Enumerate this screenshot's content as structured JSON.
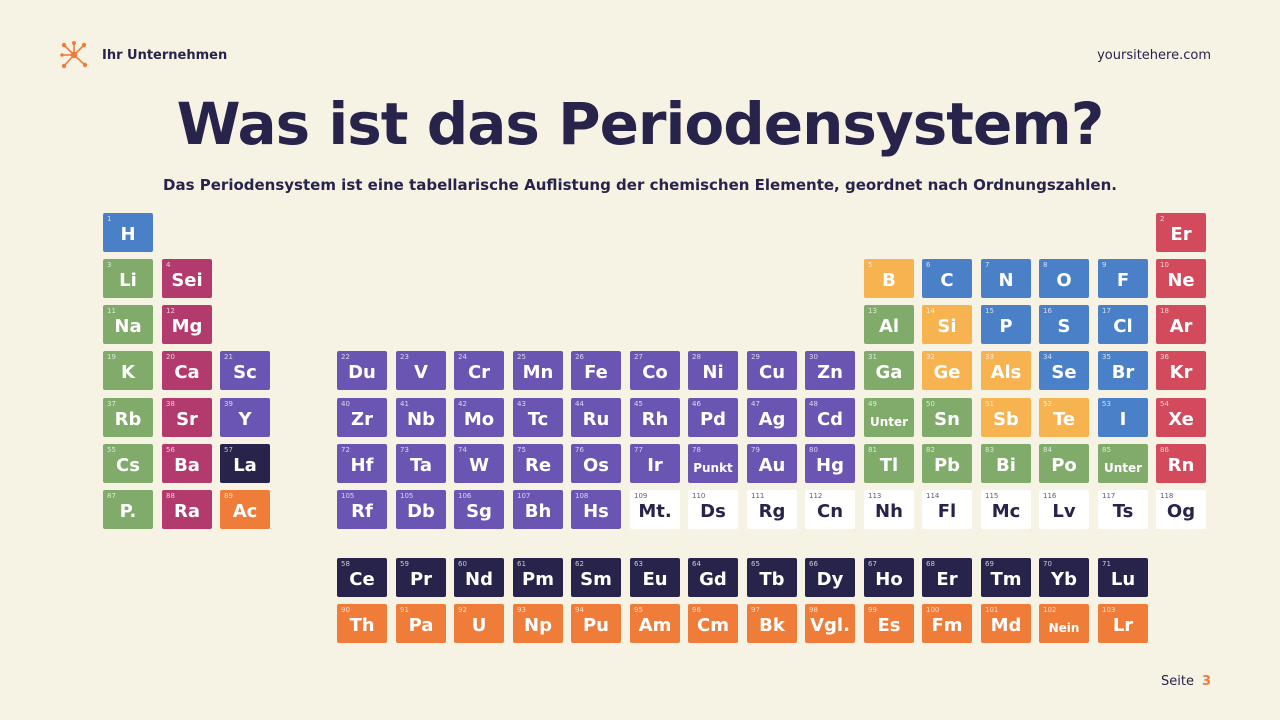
{
  "header": {
    "brand": "Ihr Unternehmen",
    "site": "yoursitehere.com",
    "logo_icon": "molecule-icon"
  },
  "title": "Was ist das Periodensystem?",
  "subtitle": "Das Periodensystem ist eine tabellarische Auflistung der chemischen Elemente, geordnet nach Ordnungszahlen.",
  "footer": {
    "label": "Seite",
    "page": "3"
  },
  "colors": {
    "blue": "#4a80c8",
    "green": "#80ab6a",
    "magenta": "#b23a6c",
    "red": "#d24a5c",
    "purple": "#6a56b2",
    "navy": "#27234a",
    "orange": "#f07c3a",
    "yellow": "#f7b350",
    "white": "#ffffff",
    "background": "#f7f3e4"
  },
  "elements": [
    {
      "n": "1",
      "s": "H",
      "c": "blue",
      "row": 0,
      "col": 0
    },
    {
      "n": "2",
      "s": "Er",
      "c": "red",
      "row": 0,
      "col": 18
    },
    {
      "n": "3",
      "s": "Li",
      "c": "green",
      "row": 1,
      "col": 0
    },
    {
      "n": "4",
      "s": "Sei",
      "c": "magenta",
      "row": 1,
      "col": 1
    },
    {
      "n": "5",
      "s": "B",
      "c": "yellow",
      "row": 1,
      "col": 13
    },
    {
      "n": "6",
      "s": "C",
      "c": "blue",
      "row": 1,
      "col": 14
    },
    {
      "n": "7",
      "s": "N",
      "c": "blue",
      "row": 1,
      "col": 15
    },
    {
      "n": "8",
      "s": "O",
      "c": "blue",
      "row": 1,
      "col": 16
    },
    {
      "n": "9",
      "s": "F",
      "c": "blue",
      "row": 1,
      "col": 17
    },
    {
      "n": "10",
      "s": "Ne",
      "c": "red",
      "row": 1,
      "col": 18
    },
    {
      "n": "11",
      "s": "Na",
      "c": "green",
      "row": 2,
      "col": 0
    },
    {
      "n": "12",
      "s": "Mg",
      "c": "magenta",
      "row": 2,
      "col": 1
    },
    {
      "n": "13",
      "s": "Al",
      "c": "green",
      "row": 2,
      "col": 13
    },
    {
      "n": "14",
      "s": "Si",
      "c": "yellow",
      "row": 2,
      "col": 14
    },
    {
      "n": "15",
      "s": "P",
      "c": "blue",
      "row": 2,
      "col": 15
    },
    {
      "n": "16",
      "s": "S",
      "c": "blue",
      "row": 2,
      "col": 16
    },
    {
      "n": "17",
      "s": "Cl",
      "c": "blue",
      "row": 2,
      "col": 17
    },
    {
      "n": "18",
      "s": "Ar",
      "c": "red",
      "row": 2,
      "col": 18
    },
    {
      "n": "19",
      "s": "K",
      "c": "green",
      "row": 3,
      "col": 0
    },
    {
      "n": "20",
      "s": "Ca",
      "c": "magenta",
      "row": 3,
      "col": 1
    },
    {
      "n": "21",
      "s": "Sc",
      "c": "purple",
      "row": 3,
      "col": 2
    },
    {
      "n": "22",
      "s": "Du",
      "c": "purple",
      "row": 3,
      "col": 4
    },
    {
      "n": "23",
      "s": "V",
      "c": "purple",
      "row": 3,
      "col": 5
    },
    {
      "n": "24",
      "s": "Cr",
      "c": "purple",
      "row": 3,
      "col": 6
    },
    {
      "n": "25",
      "s": "Mn",
      "c": "purple",
      "row": 3,
      "col": 7
    },
    {
      "n": "26",
      "s": "Fe",
      "c": "purple",
      "row": 3,
      "col": 8
    },
    {
      "n": "27",
      "s": "Co",
      "c": "purple",
      "row": 3,
      "col": 9
    },
    {
      "n": "28",
      "s": "Ni",
      "c": "purple",
      "row": 3,
      "col": 10
    },
    {
      "n": "29",
      "s": "Cu",
      "c": "purple",
      "row": 3,
      "col": 11
    },
    {
      "n": "30",
      "s": "Zn",
      "c": "purple",
      "row": 3,
      "col": 12
    },
    {
      "n": "31",
      "s": "Ga",
      "c": "green",
      "row": 3,
      "col": 13
    },
    {
      "n": "32",
      "s": "Ge",
      "c": "yellow",
      "row": 3,
      "col": 14
    },
    {
      "n": "33",
      "s": "Als",
      "c": "yellow",
      "row": 3,
      "col": 15
    },
    {
      "n": "34",
      "s": "Se",
      "c": "blue",
      "row": 3,
      "col": 16
    },
    {
      "n": "35",
      "s": "Br",
      "c": "blue",
      "row": 3,
      "col": 17
    },
    {
      "n": "36",
      "s": "Kr",
      "c": "red",
      "row": 3,
      "col": 18
    },
    {
      "n": "37",
      "s": "Rb",
      "c": "green",
      "row": 4,
      "col": 0
    },
    {
      "n": "38",
      "s": "Sr",
      "c": "magenta",
      "row": 4,
      "col": 1
    },
    {
      "n": "39",
      "s": "Y",
      "c": "purple",
      "row": 4,
      "col": 2
    },
    {
      "n": "40",
      "s": "Zr",
      "c": "purple",
      "row": 4,
      "col": 4
    },
    {
      "n": "41",
      "s": "Nb",
      "c": "purple",
      "row": 4,
      "col": 5
    },
    {
      "n": "42",
      "s": "Mo",
      "c": "purple",
      "row": 4,
      "col": 6
    },
    {
      "n": "43",
      "s": "Tc",
      "c": "purple",
      "row": 4,
      "col": 7
    },
    {
      "n": "44",
      "s": "Ru",
      "c": "purple",
      "row": 4,
      "col": 8
    },
    {
      "n": "45",
      "s": "Rh",
      "c": "purple",
      "row": 4,
      "col": 9
    },
    {
      "n": "46",
      "s": "Pd",
      "c": "purple",
      "row": 4,
      "col": 10
    },
    {
      "n": "47",
      "s": "Ag",
      "c": "purple",
      "row": 4,
      "col": 11
    },
    {
      "n": "48",
      "s": "Cd",
      "c": "purple",
      "row": 4,
      "col": 12
    },
    {
      "n": "49",
      "s": "Unter",
      "c": "green",
      "row": 4,
      "col": 13,
      "small": true
    },
    {
      "n": "50",
      "s": "Sn",
      "c": "green",
      "row": 4,
      "col": 14
    },
    {
      "n": "51",
      "s": "Sb",
      "c": "yellow",
      "row": 4,
      "col": 15
    },
    {
      "n": "52",
      "s": "Te",
      "c": "yellow",
      "row": 4,
      "col": 16
    },
    {
      "n": "53",
      "s": "I",
      "c": "blue",
      "row": 4,
      "col": 17
    },
    {
      "n": "54",
      "s": "Xe",
      "c": "red",
      "row": 4,
      "col": 18
    },
    {
      "n": "55",
      "s": "Cs",
      "c": "green",
      "row": 5,
      "col": 0
    },
    {
      "n": "56",
      "s": "Ba",
      "c": "magenta",
      "row": 5,
      "col": 1
    },
    {
      "n": "57",
      "s": "La",
      "c": "navy",
      "row": 5,
      "col": 2
    },
    {
      "n": "72",
      "s": "Hf",
      "c": "purple",
      "row": 5,
      "col": 4
    },
    {
      "n": "73",
      "s": "Ta",
      "c": "purple",
      "row": 5,
      "col": 5
    },
    {
      "n": "74",
      "s": "W",
      "c": "purple",
      "row": 5,
      "col": 6
    },
    {
      "n": "75",
      "s": "Re",
      "c": "purple",
      "row": 5,
      "col": 7
    },
    {
      "n": "76",
      "s": "Os",
      "c": "purple",
      "row": 5,
      "col": 8
    },
    {
      "n": "77",
      "s": "Ir",
      "c": "purple",
      "row": 5,
      "col": 9
    },
    {
      "n": "78",
      "s": "Punkt",
      "c": "purple",
      "row": 5,
      "col": 10,
      "small": true
    },
    {
      "n": "79",
      "s": "Au",
      "c": "purple",
      "row": 5,
      "col": 11
    },
    {
      "n": "80",
      "s": "Hg",
      "c": "purple",
      "row": 5,
      "col": 12
    },
    {
      "n": "81",
      "s": "Tl",
      "c": "green",
      "row": 5,
      "col": 13
    },
    {
      "n": "82",
      "s": "Pb",
      "c": "green",
      "row": 5,
      "col": 14
    },
    {
      "n": "83",
      "s": "Bi",
      "c": "green",
      "row": 5,
      "col": 15
    },
    {
      "n": "84",
      "s": "Po",
      "c": "green",
      "row": 5,
      "col": 16
    },
    {
      "n": "85",
      "s": "Unter",
      "c": "green",
      "row": 5,
      "col": 17,
      "small": true
    },
    {
      "n": "86",
      "s": "Rn",
      "c": "red",
      "row": 5,
      "col": 18
    },
    {
      "n": "87",
      "s": "P.",
      "c": "green",
      "row": 6,
      "col": 0
    },
    {
      "n": "88",
      "s": "Ra",
      "c": "magenta",
      "row": 6,
      "col": 1
    },
    {
      "n": "89",
      "s": "Ac",
      "c": "orange",
      "row": 6,
      "col": 2
    },
    {
      "n": "105",
      "s": "Rf",
      "c": "purple",
      "row": 6,
      "col": 4
    },
    {
      "n": "105",
      "s": "Db",
      "c": "purple",
      "row": 6,
      "col": 5
    },
    {
      "n": "106",
      "s": "Sg",
      "c": "purple",
      "row": 6,
      "col": 6
    },
    {
      "n": "107",
      "s": "Bh",
      "c": "purple",
      "row": 6,
      "col": 7
    },
    {
      "n": "108",
      "s": "Hs",
      "c": "purple",
      "row": 6,
      "col": 8
    },
    {
      "n": "109",
      "s": "Mt.",
      "c": "white",
      "row": 6,
      "col": 9
    },
    {
      "n": "110",
      "s": "Ds",
      "c": "white",
      "row": 6,
      "col": 10
    },
    {
      "n": "111",
      "s": "Rg",
      "c": "white",
      "row": 6,
      "col": 11
    },
    {
      "n": "112",
      "s": "Cn",
      "c": "white",
      "row": 6,
      "col": 12
    },
    {
      "n": "113",
      "s": "Nh",
      "c": "white",
      "row": 6,
      "col": 13
    },
    {
      "n": "114",
      "s": "Fl",
      "c": "white",
      "row": 6,
      "col": 14
    },
    {
      "n": "115",
      "s": "Mc",
      "c": "white",
      "row": 6,
      "col": 15
    },
    {
      "n": "116",
      "s": "Lv",
      "c": "white",
      "row": 6,
      "col": 16
    },
    {
      "n": "117",
      "s": "Ts",
      "c": "white",
      "row": 6,
      "col": 17
    },
    {
      "n": "118",
      "s": "Og",
      "c": "white",
      "row": 6,
      "col": 18
    },
    {
      "n": "58",
      "s": "Ce",
      "c": "navy",
      "row": 7,
      "col": 4
    },
    {
      "n": "59",
      "s": "Pr",
      "c": "navy",
      "row": 7,
      "col": 5
    },
    {
      "n": "60",
      "s": "Nd",
      "c": "navy",
      "row": 7,
      "col": 6
    },
    {
      "n": "61",
      "s": "Pm",
      "c": "navy",
      "row": 7,
      "col": 7
    },
    {
      "n": "62",
      "s": "Sm",
      "c": "navy",
      "row": 7,
      "col": 8
    },
    {
      "n": "63",
      "s": "Eu",
      "c": "navy",
      "row": 7,
      "col": 9
    },
    {
      "n": "64",
      "s": "Gd",
      "c": "navy",
      "row": 7,
      "col": 10
    },
    {
      "n": "65",
      "s": "Tb",
      "c": "navy",
      "row": 7,
      "col": 11
    },
    {
      "n": "66",
      "s": "Dy",
      "c": "navy",
      "row": 7,
      "col": 12
    },
    {
      "n": "67",
      "s": "Ho",
      "c": "navy",
      "row": 7,
      "col": 13
    },
    {
      "n": "68",
      "s": "Er",
      "c": "navy",
      "row": 7,
      "col": 14
    },
    {
      "n": "69",
      "s": "Tm",
      "c": "navy",
      "row": 7,
      "col": 15
    },
    {
      "n": "70",
      "s": "Yb",
      "c": "navy",
      "row": 7,
      "col": 16
    },
    {
      "n": "71",
      "s": "Lu",
      "c": "navy",
      "row": 7,
      "col": 17
    },
    {
      "n": "90",
      "s": "Th",
      "c": "orange",
      "row": 8,
      "col": 4
    },
    {
      "n": "91",
      "s": "Pa",
      "c": "orange",
      "row": 8,
      "col": 5
    },
    {
      "n": "92",
      "s": "U",
      "c": "orange",
      "row": 8,
      "col": 6
    },
    {
      "n": "93",
      "s": "Np",
      "c": "orange",
      "row": 8,
      "col": 7
    },
    {
      "n": "94",
      "s": "Pu",
      "c": "orange",
      "row": 8,
      "col": 8
    },
    {
      "n": "95",
      "s": "Am",
      "c": "orange",
      "row": 8,
      "col": 9
    },
    {
      "n": "96",
      "s": "Cm",
      "c": "orange",
      "row": 8,
      "col": 10
    },
    {
      "n": "97",
      "s": "Bk",
      "c": "orange",
      "row": 8,
      "col": 11
    },
    {
      "n": "98",
      "s": "Vgl.",
      "c": "orange",
      "row": 8,
      "col": 12
    },
    {
      "n": "99",
      "s": "Es",
      "c": "orange",
      "row": 8,
      "col": 13
    },
    {
      "n": "100",
      "s": "Fm",
      "c": "orange",
      "row": 8,
      "col": 14
    },
    {
      "n": "101",
      "s": "Md",
      "c": "orange",
      "row": 8,
      "col": 15
    },
    {
      "n": "102",
      "s": "Nein",
      "c": "orange",
      "row": 8,
      "col": 16,
      "small": true
    },
    {
      "n": "103",
      "s": "Lr",
      "c": "orange",
      "row": 8,
      "col": 17
    }
  ]
}
